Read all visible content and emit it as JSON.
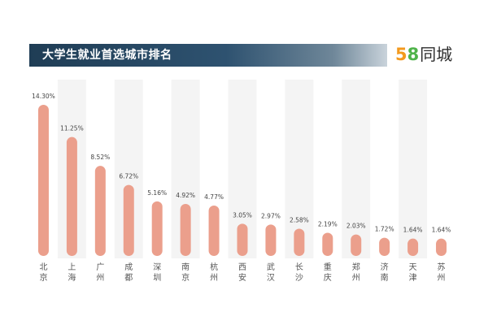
{
  "header": {
    "title": "大学生就业首选城市排名"
  },
  "logo": {
    "digit5": "5",
    "digit8": "8",
    "text": "同城"
  },
  "colors": {
    "bar": "#eb9f8c",
    "column_alt": "#f4f4f4",
    "header_dark": "#1f3d55",
    "logo_orange": "#f39a1e",
    "logo_green": "#4fb34a"
  },
  "chart_data": {
    "type": "bar",
    "title": "大学生就业首选城市排名",
    "xlabel": "",
    "ylabel": "",
    "categories": [
      "北京",
      "上海",
      "广州",
      "成都",
      "深圳",
      "南京",
      "杭州",
      "西安",
      "武汉",
      "长沙",
      "重庆",
      "郑州",
      "济南",
      "天津",
      "苏州"
    ],
    "values": [
      14.3,
      11.25,
      8.52,
      6.72,
      5.16,
      4.92,
      4.77,
      3.05,
      2.97,
      2.58,
      2.19,
      2.03,
      1.72,
      1.64,
      1.64
    ],
    "value_labels": [
      "14.30%",
      "11.25%",
      "8.52%",
      "6.72%",
      "5.16%",
      "4.92%",
      "4.77%",
      "3.05%",
      "2.97%",
      "2.58%",
      "2.19%",
      "2.03%",
      "1.72%",
      "1.64%",
      "1.64%"
    ],
    "unit": "%",
    "grid": false,
    "legend": "none"
  }
}
